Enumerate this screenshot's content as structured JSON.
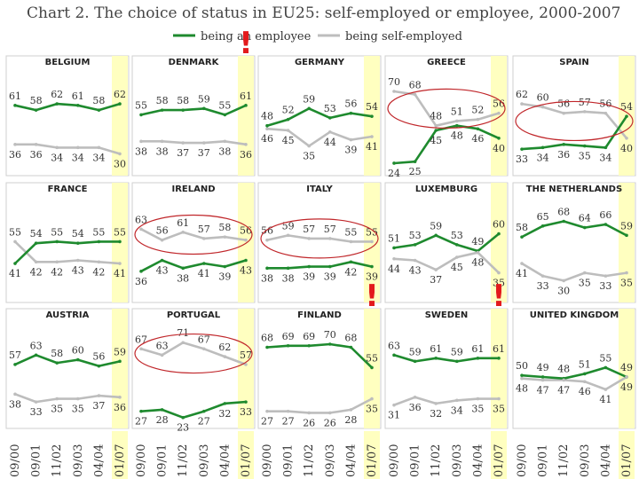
{
  "chart_data": {
    "type": "line",
    "title": "Chart 2. The choice of status in EU25: self-employed or employee, 2000-2007",
    "categories": [
      "09/00",
      "09/01",
      "11/02",
      "09/03",
      "04/04",
      "01/07"
    ],
    "legend": [
      {
        "name": "being an employee",
        "color": "#1e8a2e"
      },
      {
        "name": "being self-employed",
        "color": "#bdbdbd"
      }
    ],
    "highlight_category": "01/07",
    "highlight_color": "#ffffc0",
    "panels": [
      {
        "country": "BELGIUM",
        "employee": [
          61,
          58,
          62,
          61,
          58,
          62
        ],
        "self_employed": [
          36,
          36,
          34,
          34,
          34,
          30
        ],
        "ellipse": false,
        "alert": false
      },
      {
        "country": "DENMARK",
        "employee": [
          55,
          58,
          58,
          59,
          55,
          61
        ],
        "self_employed": [
          38,
          38,
          37,
          37,
          38,
          36
        ],
        "ellipse": false,
        "alert": true
      },
      {
        "country": "GERMANY",
        "employee": [
          48,
          52,
          59,
          53,
          56,
          54
        ],
        "self_employed": [
          46,
          45,
          35,
          44,
          39,
          41
        ],
        "ellipse": false,
        "alert": false
      },
      {
        "country": "GREECE",
        "employee": [
          24,
          25,
          45,
          48,
          46,
          40
        ],
        "self_employed": [
          70,
          68,
          48,
          51,
          52,
          56
        ],
        "ellipse": true,
        "alert": false
      },
      {
        "country": "SPAIN",
        "employee": [
          33,
          34,
          36,
          35,
          34,
          54
        ],
        "self_employed": [
          62,
          60,
          56,
          57,
          56,
          40
        ],
        "ellipse": true,
        "alert": false
      },
      {
        "country": "FRANCE",
        "employee": [
          41,
          54,
          55,
          54,
          55,
          55
        ],
        "self_employed": [
          55,
          42,
          42,
          43,
          42,
          41
        ],
        "ellipse": false,
        "alert": false
      },
      {
        "country": "IRELAND",
        "employee": [
          36,
          43,
          38,
          41,
          39,
          43
        ],
        "self_employed": [
          63,
          56,
          61,
          57,
          58,
          56
        ],
        "ellipse": true,
        "alert": false
      },
      {
        "country": "ITALY",
        "employee": [
          38,
          38,
          39,
          39,
          42,
          39
        ],
        "self_employed": [
          56,
          59,
          57,
          57,
          55,
          55
        ],
        "ellipse": true,
        "alert": false
      },
      {
        "country": "LUXEMBURG",
        "employee": [
          51,
          53,
          59,
          53,
          49,
          60
        ],
        "self_employed": [
          44,
          43,
          37,
          45,
          48,
          35
        ],
        "ellipse": false,
        "alert": false
      },
      {
        "country": "THE NETHERLANDS",
        "employee": [
          58,
          65,
          68,
          64,
          66,
          59
        ],
        "self_employed": [
          41,
          33,
          30,
          35,
          33,
          35
        ],
        "ellipse": false,
        "alert": false
      },
      {
        "country": "AUSTRIA",
        "employee": [
          57,
          63,
          58,
          60,
          56,
          59
        ],
        "self_employed": [
          38,
          33,
          35,
          35,
          37,
          36
        ],
        "ellipse": false,
        "alert": false
      },
      {
        "country": "PORTUGAL",
        "employee": [
          27,
          28,
          23,
          27,
          32,
          33
        ],
        "self_employed": [
          67,
          63,
          71,
          67,
          62,
          57
        ],
        "ellipse": true,
        "alert": false
      },
      {
        "country": "FINLAND",
        "employee": [
          68,
          69,
          69,
          70,
          68,
          55
        ],
        "self_employed": [
          27,
          27,
          26,
          26,
          28,
          35
        ],
        "ellipse": false,
        "alert": true
      },
      {
        "country": "SWEDEN",
        "employee": [
          63,
          59,
          61,
          59,
          61,
          61
        ],
        "self_employed": [
          31,
          36,
          32,
          34,
          35,
          35
        ],
        "ellipse": false,
        "alert": true
      },
      {
        "country": "UNITED KINGDOM",
        "employee": [
          50,
          49,
          48,
          51,
          55,
          49
        ],
        "self_employed": [
          48,
          47,
          47,
          46,
          41,
          49
        ],
        "ellipse": false,
        "alert": false
      }
    ]
  },
  "alert_mark": "!"
}
